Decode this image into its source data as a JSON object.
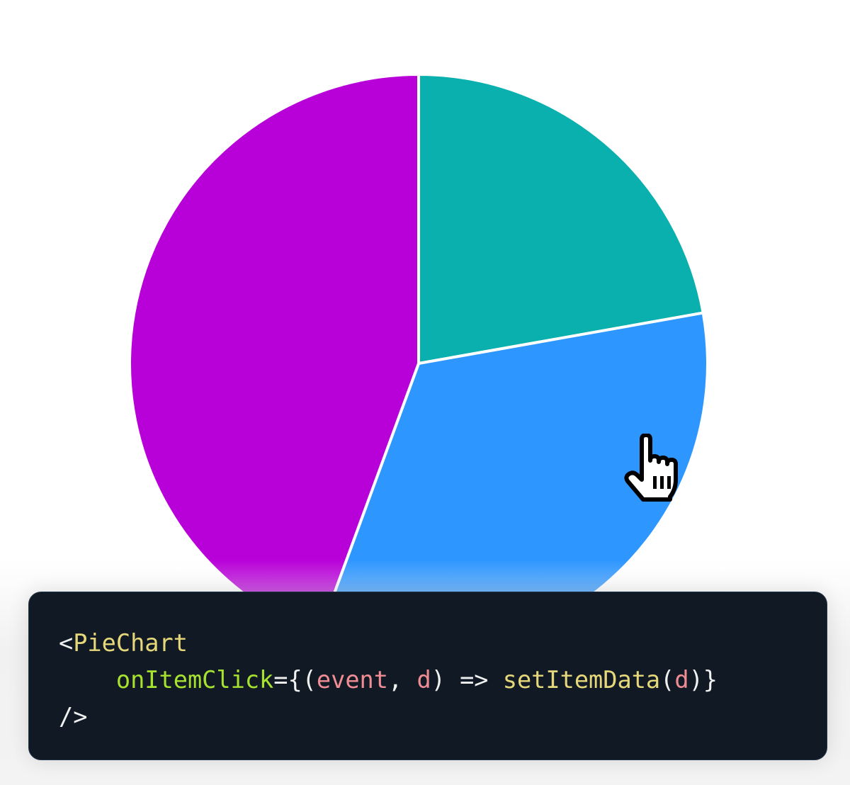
{
  "chart_data": {
    "type": "pie",
    "start_angle": "top",
    "direction": "clockwise",
    "slices": [
      {
        "value": 22.2,
        "color": "#09b0ae"
      },
      {
        "value": 33.4,
        "color": "#2e96ff"
      },
      {
        "value": 44.4,
        "color": "#b800d8"
      }
    ]
  },
  "code": {
    "line1": {
      "open": "<",
      "component": "PieChart"
    },
    "line2": {
      "prop": "onItemClick",
      "eq": "={(",
      "arg1": "event",
      "comma": ", ",
      "arg2": "d",
      "arrow": ") => ",
      "fn": "setItemData",
      "p1": "(",
      "arg3": "d",
      "close": ")}"
    },
    "line3": {
      "selfclose": "/>"
    }
  },
  "cursor": {
    "icon": "pointer-hand-icon"
  }
}
